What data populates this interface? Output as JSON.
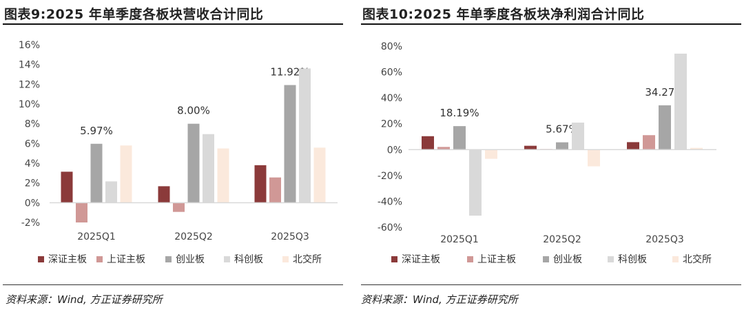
{
  "chart_data": [
    {
      "type": "bar",
      "title": "图表9:2025 年单季度各板块营收合计同比",
      "categories": [
        "2025Q1",
        "2025Q2",
        "2025Q3"
      ],
      "series": [
        {
          "name": "深证主板",
          "color": "#8B3A3A",
          "values": [
            3.14,
            1.67,
            3.8
          ]
        },
        {
          "name": "上证主板",
          "color": "#D09896",
          "values": [
            -2.0,
            -0.93,
            2.56
          ]
        },
        {
          "name": "创业板",
          "color": "#A6A6A6",
          "values": [
            5.97,
            8.0,
            11.92
          ]
        },
        {
          "name": "科创板",
          "color": "#D9D9D9",
          "values": [
            2.16,
            6.95,
            13.6
          ]
        },
        {
          "name": "北交所",
          "color": "#FBE9DC",
          "values": [
            5.8,
            5.5,
            5.58
          ]
        }
      ],
      "data_labels": [
        "5.97%",
        "8.00%",
        "11.92%"
      ],
      "data_label_series": "创业板",
      "ylim": [
        -2,
        16
      ],
      "yticks": [
        "-2%",
        "0%",
        "2%",
        "4%",
        "6%",
        "8%",
        "10%",
        "12%",
        "14%",
        "16%"
      ],
      "ytick_values": [
        -2,
        0,
        2,
        4,
        6,
        8,
        10,
        12,
        14,
        16
      ],
      "legend": "bottom",
      "grid": false,
      "source": "资料来源：Wind, 方正证券研究所"
    },
    {
      "type": "bar",
      "title": "图表10:2025 年单季度各板块净利润合计同比",
      "categories": [
        "2025Q1",
        "2025Q2",
        "2025Q3"
      ],
      "series": [
        {
          "name": "深证主板",
          "color": "#8B3A3A",
          "values": [
            10.4,
            3.0,
            5.8
          ]
        },
        {
          "name": "上证主板",
          "color": "#D09896",
          "values": [
            2.1,
            0.5,
            11.2
          ]
        },
        {
          "name": "创业板",
          "color": "#A6A6A6",
          "values": [
            18.19,
            5.67,
            34.27
          ]
        },
        {
          "name": "科创板",
          "color": "#D9D9D9",
          "values": [
            -51.0,
            20.9,
            74.2
          ]
        },
        {
          "name": "北交所",
          "color": "#FBE9DC",
          "values": [
            -7.1,
            -12.9,
            1.4
          ]
        }
      ],
      "data_labels": [
        "18.19%",
        "5.67%",
        "34.27%"
      ],
      "data_label_series": "创业板",
      "ylim": [
        -60,
        80
      ],
      "yticks": [
        "-60%",
        "-40%",
        "-20%",
        "0%",
        "20%",
        "40%",
        "60%",
        "80%"
      ],
      "ytick_values": [
        -60,
        -40,
        -20,
        0,
        20,
        40,
        60,
        80
      ],
      "legend": "bottom",
      "grid": false,
      "source": "资料来源：Wind, 方正证券研究所"
    }
  ]
}
